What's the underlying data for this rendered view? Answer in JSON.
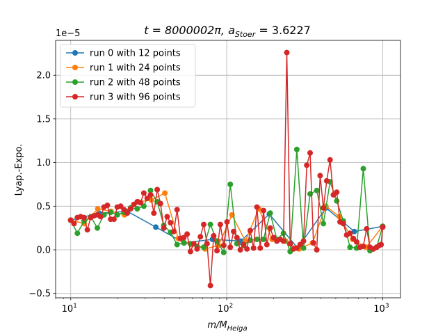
{
  "chart_data": {
    "type": "line",
    "title_main": "t = 8000002π, a",
    "title_sub": "Stoer",
    "title_tail": " = 3.6227",
    "xlabel_main": "m/M",
    "xlabel_sub": "Helga",
    "ylabel": "Lyap.-Expo.",
    "y_multiplier": "1e−5",
    "xscale": "log",
    "xlim": [
      8,
      1300
    ],
    "ylim": [
      -0.55,
      2.4
    ],
    "x_ticks": [
      {
        "value": 10,
        "base": "10",
        "exp": "1"
      },
      {
        "value": 100,
        "base": "10",
        "exp": "2"
      },
      {
        "value": 1000,
        "base": "10",
        "exp": "3"
      }
    ],
    "y_ticks": [
      {
        "value": -0.5,
        "label": "−0.5"
      },
      {
        "value": 0.0,
        "label": "0.0"
      },
      {
        "value": 0.5,
        "label": "0.5"
      },
      {
        "value": 1.0,
        "label": "1.0"
      },
      {
        "value": 1.5,
        "label": "1.5"
      },
      {
        "value": 2.0,
        "label": "2.0"
      }
    ],
    "grid": true,
    "legend_position": "top-left",
    "series": [
      {
        "name": "run 0 with 12 points",
        "color": "#1f77b4",
        "x": [
          10,
          15.2,
          23.1,
          35.1,
          53.4,
          81.1,
          123.3,
          187.4,
          284.8,
          432.9,
          657.9,
          1000
        ],
        "y": [
          0.34,
          0.42,
          0.44,
          0.26,
          0.08,
          0.12,
          0.1,
          0.41,
          0.02,
          0.48,
          0.21,
          0.27
        ]
      },
      {
        "name": "run 1 with 24 points",
        "color": "#ff7f0e",
        "x": [
          10,
          12.2,
          14.9,
          18.1,
          22.1,
          27,
          32.9,
          40.1,
          48.9,
          59.6,
          72.7,
          88.6,
          108,
          131.7,
          160.5,
          195.7,
          238.6,
          290.9,
          354.6,
          432.3,
          527.1,
          642.6,
          783.4,
          1000
        ],
        "y": [
          0.34,
          0.3,
          0.47,
          0.44,
          0.4,
          0.55,
          0.57,
          0.65,
          0.13,
          0.06,
          0.01,
          0.05,
          0.4,
          0.1,
          0.47,
          0.12,
          0.1,
          0.01,
          0.08,
          0.5,
          0.38,
          0.12,
          0.03,
          0.27
        ]
      },
      {
        "name": "run 2 with 48 points",
        "color": "#2ca02c",
        "x": [
          10,
          11.03,
          12.17,
          13.43,
          14.81,
          16.34,
          18.02,
          19.88,
          21.93,
          24.19,
          26.68,
          29.43,
          32.47,
          35.82,
          39.51,
          43.59,
          48.08,
          53.04,
          58.51,
          64.55,
          71.2,
          78.55,
          86.65,
          95.58,
          105.4,
          116.3,
          128.3,
          141.5,
          156.1,
          172.2,
          190,
          209.6,
          231.2,
          255,
          281.3,
          310.4,
          342.4,
          377.7,
          416.6,
          459.6,
          507,
          559.3,
          617,
          680.6,
          750.8,
          828.2,
          913.6,
          1000
        ],
        "y": [
          0.34,
          0.19,
          0.33,
          0.38,
          0.25,
          0.4,
          0.43,
          0.4,
          0.43,
          0.48,
          0.47,
          0.5,
          0.68,
          0.55,
          0.28,
          0.2,
          0.06,
          0.08,
          0.07,
          0.04,
          0.03,
          0.29,
          0.1,
          -0.03,
          0.75,
          0.07,
          0.05,
          0.11,
          0.12,
          0.12,
          0.42,
          0.12,
          0.19,
          -0.02,
          1.15,
          0.02,
          0.64,
          0.68,
          0.3,
          0.78,
          0.56,
          0.33,
          0.03,
          0.02,
          0.93,
          -0.01,
          0.03,
          0.27
        ]
      },
      {
        "name": "run 3 with 96 points",
        "color": "#d62728",
        "x": [
          10,
          10.5,
          11.03,
          11.58,
          12.17,
          12.78,
          13.43,
          14.1,
          14.81,
          15.56,
          16.34,
          17.16,
          18.02,
          18.93,
          19.88,
          20.88,
          21.93,
          23.03,
          24.19,
          25.41,
          26.68,
          28.03,
          29.43,
          30.91,
          32.47,
          34.1,
          35.82,
          37.62,
          39.51,
          41.5,
          43.59,
          45.78,
          48.08,
          50.5,
          53.04,
          55.71,
          58.51,
          61.46,
          64.55,
          67.8,
          71.2,
          74.79,
          78.55,
          82.5,
          86.65,
          91.01,
          95.58,
          100.4,
          105.4,
          110.7,
          116.3,
          122.2,
          128.3,
          134.8,
          141.5,
          148.7,
          156.1,
          164,
          172.2,
          180.9,
          190,
          199.5,
          209.6,
          220.1,
          231.2,
          242.8,
          255,
          267.8,
          281.3,
          295.5,
          310.4,
          326,
          342.4,
          359.6,
          377.7,
          396.7,
          416.6,
          437.6,
          459.6,
          482.7,
          507,
          532.5,
          559.3,
          587.5,
          617,
          648.1,
          680.6,
          714.9,
          750.8,
          788.6,
          828.2,
          869.9,
          913.6,
          952,
          976,
          1000
        ],
        "y": [
          0.34,
          0.3,
          0.37,
          0.38,
          0.37,
          0.23,
          0.37,
          0.39,
          0.4,
          0.38,
          0.49,
          0.51,
          0.35,
          0.35,
          0.49,
          0.5,
          0.46,
          0.42,
          0.47,
          0.52,
          0.55,
          0.54,
          0.65,
          0.59,
          0.63,
          0.42,
          0.69,
          0.53,
          0.25,
          0.38,
          0.31,
          0.21,
          0.46,
          0.13,
          0.14,
          0.18,
          -0.02,
          0.07,
          0.01,
          0.15,
          0.29,
          0.07,
          -0.41,
          0.16,
          -0.01,
          0.29,
          0.05,
          0.32,
          0.03,
          0.21,
          0.14,
          0.0,
          0.06,
          0.01,
          0.22,
          0.02,
          0.49,
          0.02,
          0.45,
          0.06,
          0.25,
          0.14,
          0.1,
          0.12,
          0.1,
          2.26,
          0.07,
          0.01,
          0.02,
          0.06,
          0.1,
          0.97,
          1.11,
          0.08,
          0.0,
          0.85,
          0.48,
          0.79,
          1.03,
          0.63,
          0.66,
          0.32,
          0.3,
          0.17,
          0.19,
          0.13,
          0.09,
          0.03,
          0.04,
          0.24,
          0.03,
          0.01,
          0.03,
          0.05,
          0.06,
          0.26
        ]
      }
    ]
  }
}
